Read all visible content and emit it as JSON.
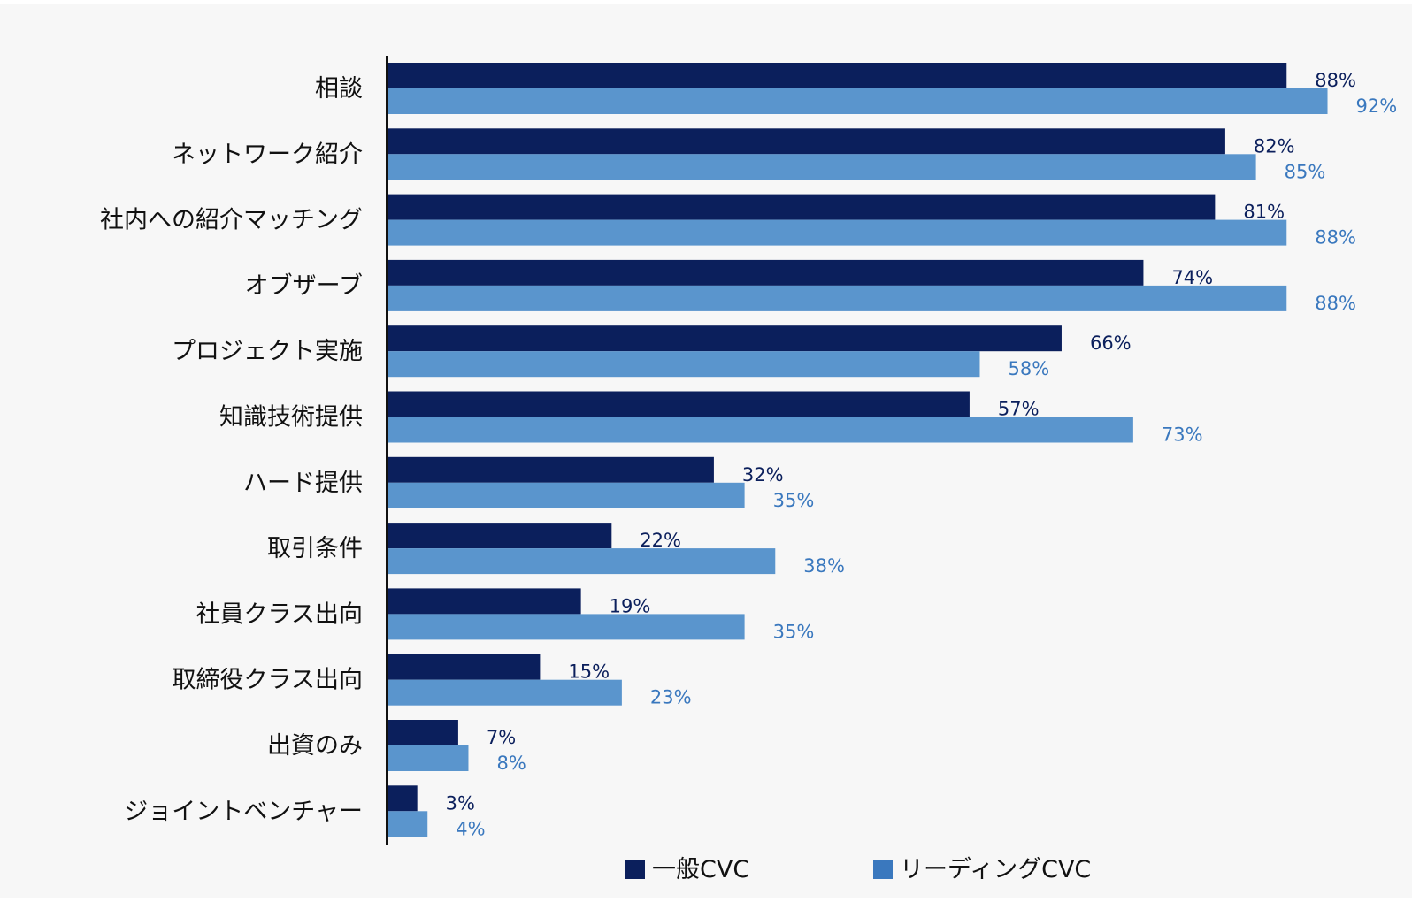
{
  "chart_data": {
    "type": "bar",
    "orientation": "horizontal",
    "categories": [
      "相談",
      "ネットワーク紹介",
      "社内への紹介マッチング",
      "オブザーブ",
      "プロジェクト実施",
      "知識技術提供",
      "ハード提供",
      "取引条件",
      "社員クラス出向",
      "取締役クラス出向",
      "出資のみ",
      "ジョイントベンチャー"
    ],
    "series": [
      {
        "name": "一般CVC",
        "color": "#0b1f5c",
        "values": [
          88,
          82,
          81,
          74,
          66,
          57,
          32,
          22,
          19,
          15,
          7,
          3
        ],
        "labels": [
          "88%",
          "82%",
          "81%",
          "74%",
          "66%",
          "57%",
          "32%",
          "22%",
          "19%",
          "15%",
          "7%",
          "3%"
        ]
      },
      {
        "name": "リーディングCVC",
        "color": "#5a95cd",
        "label_color": "#3a78be",
        "values": [
          92,
          85,
          88,
          88,
          58,
          73,
          35,
          38,
          35,
          23,
          8,
          4
        ],
        "labels": [
          "92%",
          "85%",
          "88%",
          "88%",
          "58%",
          "73%",
          "35%",
          "38%",
          "35%",
          "23%",
          "8%",
          "4%"
        ]
      }
    ],
    "xlim": [
      0,
      100
    ],
    "grid": false,
    "legend_position": "bottom",
    "legend_swatch_colors": [
      "#0b1f5c",
      "#3a78be"
    ],
    "background_color": "#f7f7f7",
    "axis_color": "#111111"
  }
}
